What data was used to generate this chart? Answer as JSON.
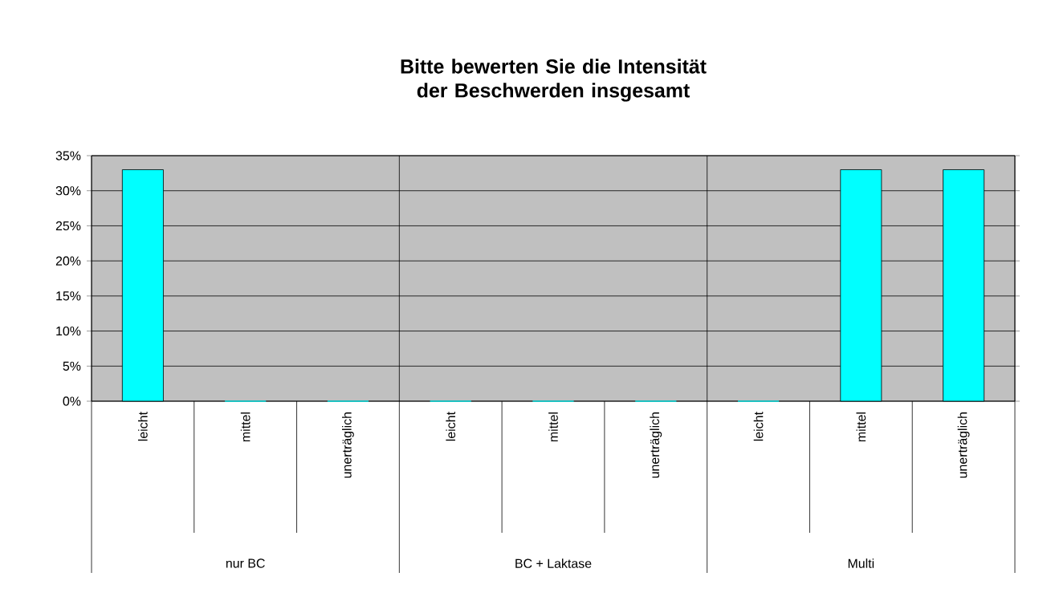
{
  "chart_data": {
    "type": "bar",
    "title": "Bitte bewerten Sie die Intensität der Beschwerden insgesamt",
    "categories": [
      "leicht",
      "mittel",
      "unerträglich",
      "leicht",
      "mittel",
      "unerträglich",
      "leicht",
      "mittel",
      "unerträglich"
    ],
    "values": [
      33,
      0,
      0,
      0,
      0,
      0,
      0,
      33,
      33
    ],
    "color": "#00ffff",
    "ylim": [
      0,
      35
    ],
    "yticks": [
      {
        "value": 0,
        "label": "0%"
      },
      {
        "value": 5,
        "label": "5%"
      },
      {
        "value": 10,
        "label": "10%"
      },
      {
        "value": 15,
        "label": "15%"
      },
      {
        "value": 20,
        "label": "20%"
      },
      {
        "value": 25,
        "label": "25%"
      },
      {
        "value": 30,
        "label": "30%"
      },
      {
        "value": 35,
        "label": "35%"
      }
    ],
    "grid": "y",
    "annotations": [
      "nur BC",
      "BC + Laktase",
      "Multi"
    ]
  }
}
